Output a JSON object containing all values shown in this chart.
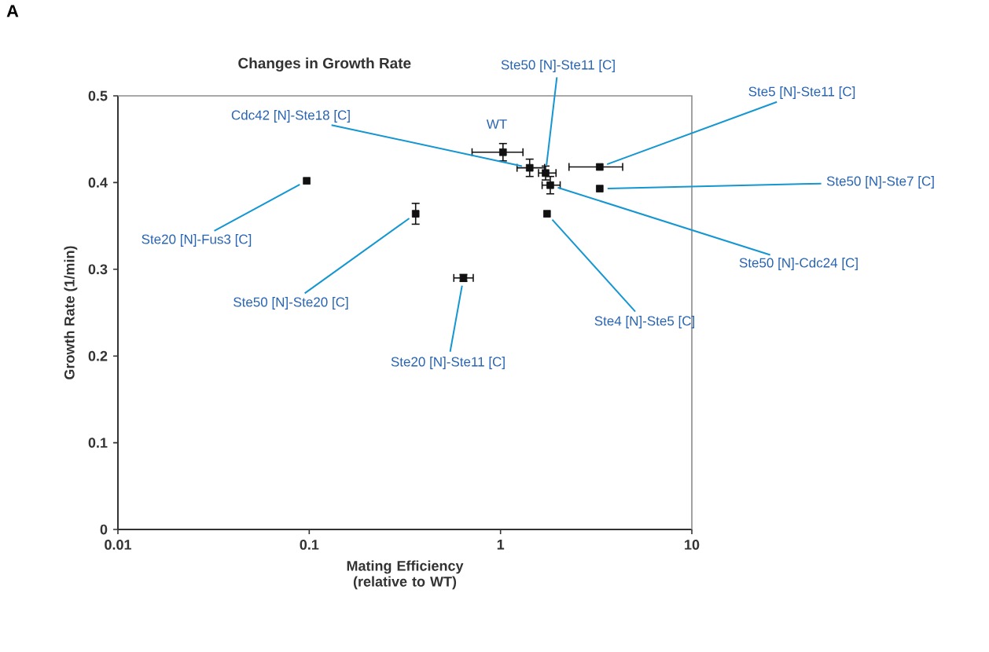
{
  "chart_data": {
    "type": "scatter",
    "title": "Changes in Growth Rate",
    "xlabel": "Mating Efficiency (relative to WT)",
    "ylabel": "Growth Rate (1/min)",
    "log": "x",
    "xlim": [
      0.01,
      10
    ],
    "ylim": [
      0,
      0.5
    ],
    "xticks": [
      0.01,
      0.1,
      1,
      10
    ],
    "yticks": [
      0,
      0.1,
      0.2,
      0.3,
      0.4,
      0.5
    ],
    "marker": "square",
    "series": [
      {
        "color": "#111111",
        "x": [
          0.097,
          0.36,
          0.64,
          1.03,
          1.42,
          1.72,
          1.82,
          1.75,
          3.3,
          3.3
        ],
        "values": [
          0.402,
          0.364,
          0.29,
          0.435,
          0.417,
          0.411,
          0.397,
          0.364,
          0.418,
          0.393
        ],
        "errors": [
          null,
          0.012,
          0.004,
          0.01,
          0.01,
          0.008,
          0.01,
          null,
          null,
          null
        ],
        "xerrors": [
          null,
          null,
          [
            0.57,
            0.72
          ],
          [
            0.71,
            1.31
          ],
          [
            1.22,
            1.7
          ],
          [
            1.58,
            1.95
          ],
          [
            1.65,
            2.05
          ],
          null,
          [
            2.28,
            4.35
          ],
          null
        ]
      }
    ],
    "annotations": [
      "A",
      {
        "text": "WT",
        "x": 1.03,
        "y": 0.435
      },
      {
        "text": "Cdc42 [N]-Ste18 [C]",
        "x": 1.42,
        "y": 0.417
      },
      {
        "text": "Ste50 [N]-Ste11 [C]",
        "x": 1.72,
        "y": 0.411
      },
      {
        "text": "Ste5 [N]-Ste11 [C]",
        "x": 3.3,
        "y": 0.418
      },
      {
        "text": "Ste50 [N]-Ste7 [C]",
        "x": 3.3,
        "y": 0.393
      },
      {
        "text": "Ste50 [N]-Cdc24 [C]",
        "x": 1.82,
        "y": 0.397
      },
      {
        "text": "Ste4 [N]-Ste5 [C]",
        "x": 1.75,
        "y": 0.364
      },
      {
        "text": "Ste20 [N]-Ste11 [C]",
        "x": 0.64,
        "y": 0.29
      },
      {
        "text": "Ste50 [N]-Ste20 [C]",
        "x": 0.36,
        "y": 0.364
      },
      {
        "text": "Ste20 [N]-Fus3 [C]",
        "x": 0.097,
        "y": 0.402
      }
    ]
  }
}
